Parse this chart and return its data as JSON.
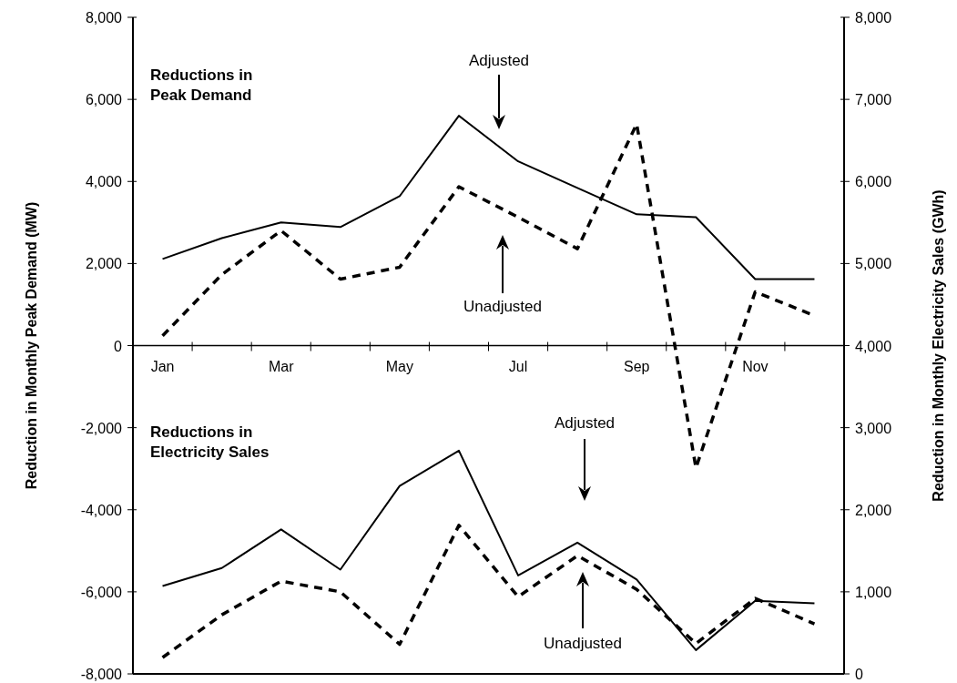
{
  "chart_data": {
    "type": "line",
    "categories": [
      "Jan",
      null,
      "Mar",
      null,
      "May",
      null,
      "Jul",
      null,
      "Sep",
      null,
      "Nov",
      null
    ],
    "series": [
      {
        "color": "#000000",
        "line_style": "solid",
        "axis": "y",
        "values": [
          2110,
          2620,
          3000,
          2890,
          3640,
          5600,
          4490,
          3840,
          3200,
          3130,
          1620,
          1620
        ]
      },
      {
        "color": "#000000",
        "line_style": "dashed",
        "axis": "y",
        "values": [
          240,
          1730,
          2800,
          1620,
          1910,
          3870,
          3130,
          2360,
          5400,
          -2980,
          1310,
          730
        ]
      },
      {
        "color": "#000000",
        "line_style": "solid",
        "axis": "y2",
        "values": [
          1070,
          1290,
          1760,
          1270,
          2290,
          2720,
          1200,
          1600,
          1150,
          290,
          890,
          860
        ]
      },
      {
        "color": "#000000",
        "line_style": "dashed",
        "axis": "y2",
        "values": [
          200,
          720,
          1130,
          1000,
          360,
          1810,
          940,
          1440,
          1030,
          370,
          920,
          610
        ]
      }
    ],
    "ylabel": "Reduction in Monthly Peak Demand (MW)",
    "y2label": "Reduction in Monthly Electricity Sales (GWh)",
    "ylim": [
      -8000,
      8000
    ],
    "yticks": [
      {
        "value": -8000,
        "label": "-8,000"
      },
      {
        "value": -6000,
        "label": "-6,000"
      },
      {
        "value": -4000,
        "label": "-4,000"
      },
      {
        "value": -2000,
        "label": "-2,000"
      },
      0,
      {
        "value": 2000,
        "label": "2,000"
      },
      {
        "value": 4000,
        "label": "4,000"
      },
      {
        "value": 6000,
        "label": "6,000"
      },
      {
        "value": 8000,
        "label": "8,000"
      }
    ],
    "y2lim": [
      0,
      8000
    ],
    "y2ticks": [
      0,
      {
        "value": 1000,
        "label": "1,000"
      },
      {
        "value": 2000,
        "label": "2,000"
      },
      {
        "value": 3000,
        "label": "3,000"
      },
      {
        "value": 4000,
        "label": "4,000"
      },
      {
        "value": 5000,
        "label": "5,000"
      },
      {
        "value": 6000,
        "label": "6,000"
      },
      {
        "value": 7000,
        "label": "7,000"
      },
      {
        "value": 8000,
        "label": "8,000"
      }
    ],
    "grid": false,
    "marker": "none",
    "annotations": [
      "Reductions in\nPeak Demand",
      "Adjusted",
      "Unadjusted",
      "Reductions in\nElectricity Sales",
      "Adjusted",
      "Unadjusted"
    ]
  }
}
